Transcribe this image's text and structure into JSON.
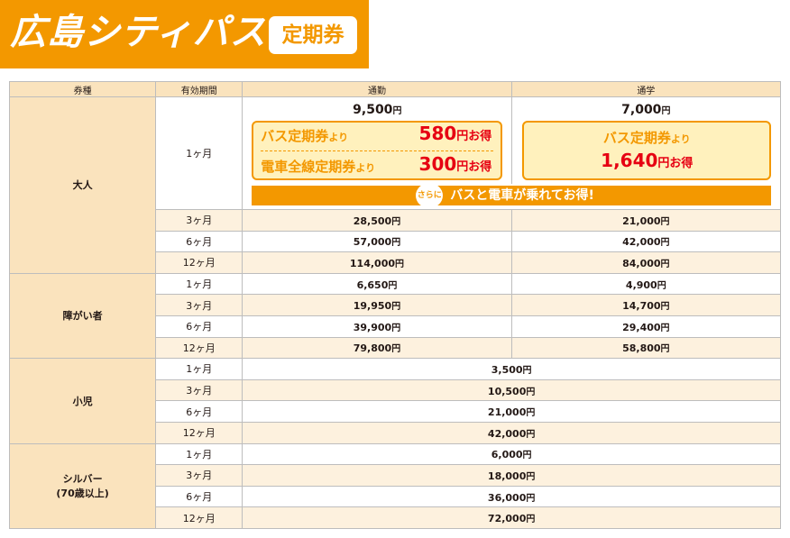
{
  "banner": {
    "title": "広島シティパス",
    "badge": "定期券"
  },
  "headers": {
    "type": "券種",
    "period": "有効期間",
    "commute": "通勤",
    "school": "通学"
  },
  "yen": "円",
  "feature": {
    "commute_base": "9,500",
    "school_base": "7,000",
    "commute_box": {
      "line1_label": "バス定期券",
      "line1_suffix": "より",
      "line1_amount": "580",
      "line1_tail": "円お得",
      "line2_label": "電車全線定期券",
      "line2_suffix": "より",
      "line2_amount": "300",
      "line2_tail": "円お得"
    },
    "school_box": {
      "line1_label": "バス定期券",
      "line1_suffix": "より",
      "line2_amount": "1,640",
      "line2_tail": "円お得"
    },
    "bonus_prefix": "さらに",
    "bonus_text": "バスと電車が乗れてお得!"
  },
  "adult": {
    "label": "大人",
    "first_period": "1ヶ月",
    "rows": [
      {
        "period": "3ヶ月",
        "commute": "28,500",
        "school": "21,000"
      },
      {
        "period": "6ヶ月",
        "commute": "57,000",
        "school": "42,000"
      },
      {
        "period": "12ヶ月",
        "commute": "114,000",
        "school": "84,000"
      }
    ]
  },
  "disabled": {
    "label": "障がい者",
    "rows": [
      {
        "period": "1ヶ月",
        "commute": "6,650",
        "school": "4,900"
      },
      {
        "period": "3ヶ月",
        "commute": "19,950",
        "school": "14,700"
      },
      {
        "period": "6ヶ月",
        "commute": "39,900",
        "school": "29,400"
      },
      {
        "period": "12ヶ月",
        "commute": "79,800",
        "school": "58,800"
      }
    ]
  },
  "child": {
    "label": "小児",
    "rows": [
      {
        "period": "1ヶ月",
        "price": "3,500"
      },
      {
        "period": "3ヶ月",
        "price": "10,500"
      },
      {
        "period": "6ヶ月",
        "price": "21,000"
      },
      {
        "period": "12ヶ月",
        "price": "42,000"
      }
    ]
  },
  "silver": {
    "label_line1": "シルバー",
    "label_line2": "(70歳以上)",
    "rows": [
      {
        "period": "1ヶ月",
        "price": "6,000"
      },
      {
        "period": "3ヶ月",
        "price": "18,000"
      },
      {
        "period": "6ヶ月",
        "price": "36,000"
      },
      {
        "period": "12ヶ月",
        "price": "72,000"
      }
    ]
  },
  "colors": {
    "orange": "#f39800",
    "red": "#e60012",
    "cream": "#fae3bd",
    "box": "#fff1bd"
  }
}
